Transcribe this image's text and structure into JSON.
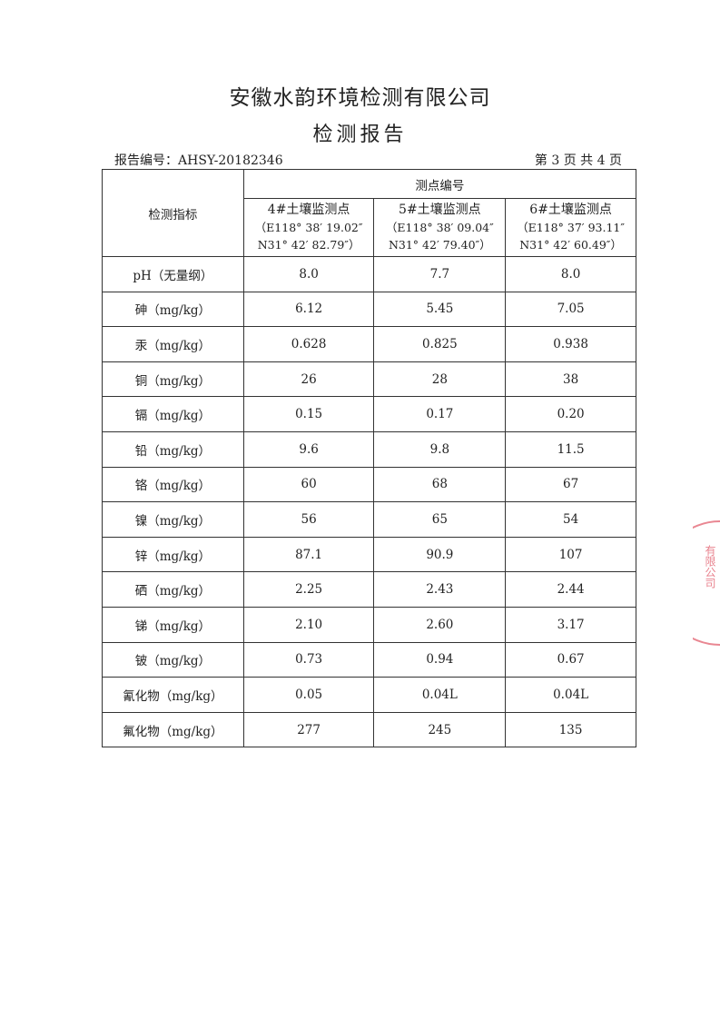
{
  "header": {
    "company": "安徽水韵环境检测有限公司",
    "title": "检测报告",
    "report_no": "报告编号：AHSY-20182346",
    "page_info": "第 3 页  共 4 页"
  },
  "table": {
    "col0_header": "检测指标",
    "group_header": "测点编号",
    "points": [
      {
        "name": "4#土壤监测点",
        "coord1": "（E118° 38′ 19.02″",
        "coord2": "N31° 42′ 82.79″）"
      },
      {
        "name": "5#土壤监测点",
        "coord1": "（E118° 38′ 09.04″",
        "coord2": "N31° 42′ 79.40″）"
      },
      {
        "name": "6#土壤监测点",
        "coord1": "（E118° 37′ 93.11″",
        "coord2": "N31° 42′ 60.49″）"
      }
    ],
    "rows": [
      {
        "item": "pH（无量纲）",
        "v": [
          "8.0",
          "7.7",
          "8.0"
        ]
      },
      {
        "item": "砷（mg/kg）",
        "v": [
          "6.12",
          "5.45",
          "7.05"
        ]
      },
      {
        "item": "汞（mg/kg）",
        "v": [
          "0.628",
          "0.825",
          "0.938"
        ]
      },
      {
        "item": "铜（mg/kg）",
        "v": [
          "26",
          "28",
          "38"
        ]
      },
      {
        "item": "镉（mg/kg）",
        "v": [
          "0.15",
          "0.17",
          "0.20"
        ]
      },
      {
        "item": "铅（mg/kg）",
        "v": [
          "9.6",
          "9.8",
          "11.5"
        ]
      },
      {
        "item": "铬（mg/kg）",
        "v": [
          "60",
          "68",
          "67"
        ]
      },
      {
        "item": "镍（mg/kg）",
        "v": [
          "56",
          "65",
          "54"
        ]
      },
      {
        "item": "锌（mg/kg）",
        "v": [
          "87.1",
          "90.9",
          "107"
        ]
      },
      {
        "item": "硒（mg/kg）",
        "v": [
          "2.25",
          "2.43",
          "2.44"
        ]
      },
      {
        "item": "锑（mg/kg）",
        "v": [
          "2.10",
          "2.60",
          "3.17"
        ]
      },
      {
        "item": "铍（mg/kg）",
        "v": [
          "0.73",
          "0.94",
          "0.67"
        ]
      },
      {
        "item": "氰化物（mg/kg）",
        "v": [
          "0.05",
          "0.04L",
          "0.04L"
        ]
      },
      {
        "item": "氟化物（mg/kg）",
        "v": [
          "277",
          "245",
          "135"
        ]
      }
    ]
  },
  "stamp": {
    "text": "有限公司",
    "color": "#e46a78"
  }
}
